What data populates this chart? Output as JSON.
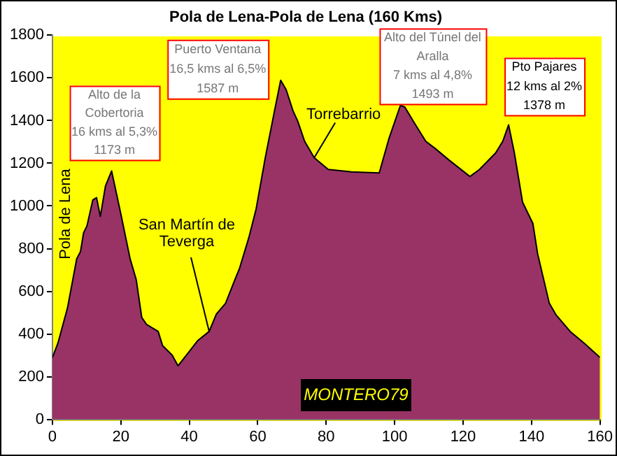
{
  "chart_data": {
    "type": "area",
    "title": "Pola de Lena-Pola de Lena (160 Kms)",
    "x": [
      0,
      1.6,
      4.4,
      7.1,
      8.2,
      9.1,
      10.1,
      11.8,
      12.9,
      14,
      15.5,
      17.3,
      20,
      22.7,
      24.5,
      26.1,
      27.5,
      30.9,
      32.2,
      35,
      36.7,
      39.7,
      42.4,
      45.8,
      47.9,
      50.6,
      53.3,
      54.7,
      57.4,
      59.5,
      62.2,
      64.9,
      66.7,
      68.3,
      70.3,
      71.7,
      73.7,
      76.5,
      80.6,
      87.4,
      95.5,
      98.3,
      101.7,
      103,
      105.7,
      109.1,
      111.8,
      115.9,
      122,
      124.8,
      129.5,
      131.6,
      133.3,
      135,
      137.4,
      140.4,
      141.8,
      145.2,
      147.2,
      151.3,
      155.4,
      160
    ],
    "series": [
      {
        "color": "#993366",
        "values": [
          290,
          357,
          522,
          753,
          786,
          874,
          907,
          1028,
          1039,
          951,
          1094,
          1164,
          962,
          753,
          654,
          478,
          445,
          412,
          345,
          301,
          251,
          312,
          368,
          412,
          493,
          544,
          654,
          709,
          852,
          984,
          1226,
          1446,
          1589,
          1545,
          1446,
          1397,
          1303,
          1226,
          1171,
          1160,
          1155,
          1314,
          1472,
          1463,
          1391,
          1303,
          1270,
          1215,
          1138,
          1171,
          1248,
          1303,
          1380,
          1248,
          1017,
          918,
          775,
          544,
          489,
          412,
          357,
          290
        ]
      }
    ],
    "xlim": [
      0,
      160
    ],
    "xticks": [
      0,
      20,
      40,
      60,
      80,
      100,
      120,
      140,
      160
    ],
    "ylim": [
      0,
      1800
    ],
    "yticks": [
      0,
      200,
      400,
      600,
      800,
      1000,
      1200,
      1400,
      1600,
      1800
    ],
    "grid": false,
    "legend": false,
    "marker": "none",
    "line_style": "solid",
    "annotations": [
      {
        "text": "Alto de la\nCobertoria\n16 kms al 5,3%\n1173 m",
        "x": 17.3,
        "y": 1164
      },
      {
        "text": "Puerto Ventana\n16,5 kms al 6,5%\n1587 m",
        "x": 66.7,
        "y": 1589
      },
      {
        "text": "Alto del Túnel del\nAralla\n7 kms al 4,8%\n1493 m",
        "x": 101.7,
        "y": 1472
      },
      {
        "text": "Pto Pajares\n12 kms al 2%\n1378 m",
        "x": 133.3,
        "y": 1380
      },
      {
        "text": "San Martín de\nTeverga",
        "x": 45.8,
        "y": 412
      },
      {
        "text": "Torrebarrio",
        "x": 76.5,
        "y": 1226
      },
      "Pola de Lena",
      "MONTERO79"
    ]
  }
}
